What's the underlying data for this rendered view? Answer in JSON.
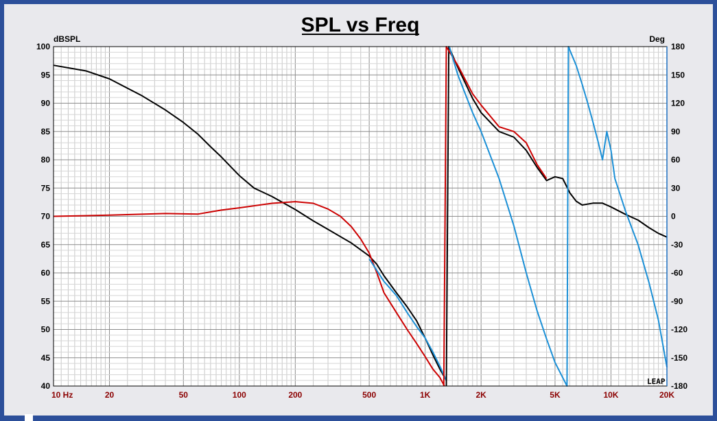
{
  "chart_data": {
    "type": "line",
    "title": "SPL vs Freq",
    "xscale": "log",
    "xlim": [
      10,
      20000
    ],
    "ylim": [
      40,
      100
    ],
    "y2lim": [
      -180,
      180
    ],
    "ylabel": "dBSPL",
    "y2label": "Deg",
    "grid": true,
    "x_tick_labels": [
      "10 Hz",
      "20",
      "50",
      "100",
      "200",
      "500",
      "1K",
      "2K",
      "5K",
      "10K",
      "20K"
    ],
    "x_tick_values": [
      10,
      20,
      50,
      100,
      200,
      500,
      1000,
      2000,
      5000,
      10000,
      20000
    ],
    "y_ticks": [
      100,
      95,
      90,
      85,
      80,
      75,
      70,
      65,
      60,
      55,
      50,
      45,
      40
    ],
    "y2_ticks": [
      180,
      150,
      120,
      90,
      60,
      30,
      0,
      -30,
      -60,
      -90,
      -120,
      -150,
      -180
    ],
    "series": [
      {
        "axis": "left",
        "color": "#000000",
        "points": [
          [
            10,
            96.7
          ],
          [
            15,
            95.7
          ],
          [
            20,
            94.3
          ],
          [
            30,
            91.3
          ],
          [
            40,
            88.8
          ],
          [
            50,
            86.6
          ],
          [
            60,
            84.5
          ],
          [
            70,
            82.3
          ],
          [
            80,
            80.5
          ],
          [
            100,
            77.2
          ],
          [
            120,
            75.0
          ],
          [
            150,
            73.5
          ],
          [
            200,
            71.2
          ],
          [
            250,
            69.2
          ],
          [
            300,
            67.7
          ],
          [
            400,
            65.3
          ],
          [
            500,
            63.0
          ],
          [
            550,
            61.5
          ],
          [
            600,
            59.5
          ],
          [
            700,
            56.5
          ],
          [
            800,
            54.0
          ],
          [
            900,
            51.5
          ],
          [
            1000,
            48.5
          ],
          [
            1100,
            45.5
          ],
          [
            1200,
            43.0
          ],
          [
            1300,
            41.0
          ]
        ]
      },
      {
        "axis": "left",
        "color": "#cc0000",
        "points": [
          [
            10,
            70.0
          ],
          [
            20,
            70.2
          ],
          [
            40,
            70.5
          ],
          [
            60,
            70.4
          ],
          [
            80,
            71.1
          ],
          [
            100,
            71.5
          ],
          [
            150,
            72.3
          ],
          [
            200,
            72.6
          ],
          [
            250,
            72.3
          ],
          [
            300,
            71.3
          ],
          [
            350,
            70.0
          ],
          [
            400,
            68.2
          ],
          [
            450,
            66.0
          ],
          [
            500,
            63.5
          ],
          [
            550,
            60.0
          ],
          [
            600,
            56.5
          ],
          [
            700,
            53.0
          ],
          [
            800,
            50.0
          ],
          [
            900,
            47.5
          ],
          [
            1000,
            45.2
          ],
          [
            1100,
            43.0
          ],
          [
            1200,
            41.5
          ],
          [
            1270,
            40.0
          ]
        ]
      },
      {
        "axis": "left",
        "color": "#1a8fd6",
        "points": [
          [
            500,
            62.5
          ],
          [
            600,
            58.5
          ],
          [
            700,
            56.0
          ],
          [
            800,
            53.0
          ],
          [
            900,
            50.5
          ],
          [
            1000,
            48.5
          ],
          [
            1100,
            46.0
          ],
          [
            1200,
            43.5
          ],
          [
            1300,
            41.0
          ]
        ]
      },
      {
        "axis": "right",
        "color": "#000000",
        "points": [
          [
            1300,
            -180
          ],
          [
            1340,
            180
          ],
          [
            1500,
            158
          ],
          [
            1800,
            125
          ],
          [
            2000,
            110
          ],
          [
            2500,
            90
          ],
          [
            3000,
            84
          ],
          [
            3500,
            70
          ],
          [
            4000,
            52
          ],
          [
            4500,
            38
          ],
          [
            5000,
            42
          ],
          [
            5500,
            40
          ],
          [
            6000,
            25
          ],
          [
            6500,
            16
          ],
          [
            7000,
            12
          ],
          [
            8000,
            14
          ],
          [
            9000,
            14
          ],
          [
            10000,
            10
          ],
          [
            12000,
            2
          ],
          [
            14000,
            -4
          ],
          [
            16000,
            -12
          ],
          [
            18000,
            -18
          ],
          [
            20000,
            -22
          ]
        ]
      },
      {
        "axis": "right",
        "color": "#cc0000",
        "points": [
          [
            1260,
            -180
          ],
          [
            1300,
            180
          ],
          [
            1500,
            160
          ],
          [
            1800,
            130
          ],
          [
            2000,
            118
          ],
          [
            2500,
            95
          ],
          [
            3000,
            90
          ],
          [
            3500,
            78
          ],
          [
            4000,
            55
          ],
          [
            4500,
            40
          ]
        ]
      },
      {
        "axis": "right",
        "color": "#1a8fd6",
        "points": [
          [
            1350,
            180
          ],
          [
            1500,
            150
          ],
          [
            1800,
            110
          ],
          [
            2000,
            90
          ],
          [
            2500,
            40
          ],
          [
            3000,
            -10
          ],
          [
            3500,
            -60
          ],
          [
            4000,
            -100
          ],
          [
            4500,
            -130
          ],
          [
            5000,
            -155
          ],
          [
            5800,
            -180
          ],
          [
            5900,
            180
          ],
          [
            6500,
            160
          ],
          [
            7000,
            140
          ],
          [
            7500,
            120
          ],
          [
            8000,
            100
          ],
          [
            8500,
            80
          ],
          [
            9000,
            60
          ],
          [
            9500,
            90
          ],
          [
            10000,
            70
          ],
          [
            10500,
            40
          ],
          [
            12000,
            5
          ],
          [
            14000,
            -30
          ],
          [
            16000,
            -70
          ],
          [
            18000,
            -110
          ],
          [
            20000,
            -160
          ]
        ]
      }
    ]
  },
  "logo_text": "LEAP"
}
